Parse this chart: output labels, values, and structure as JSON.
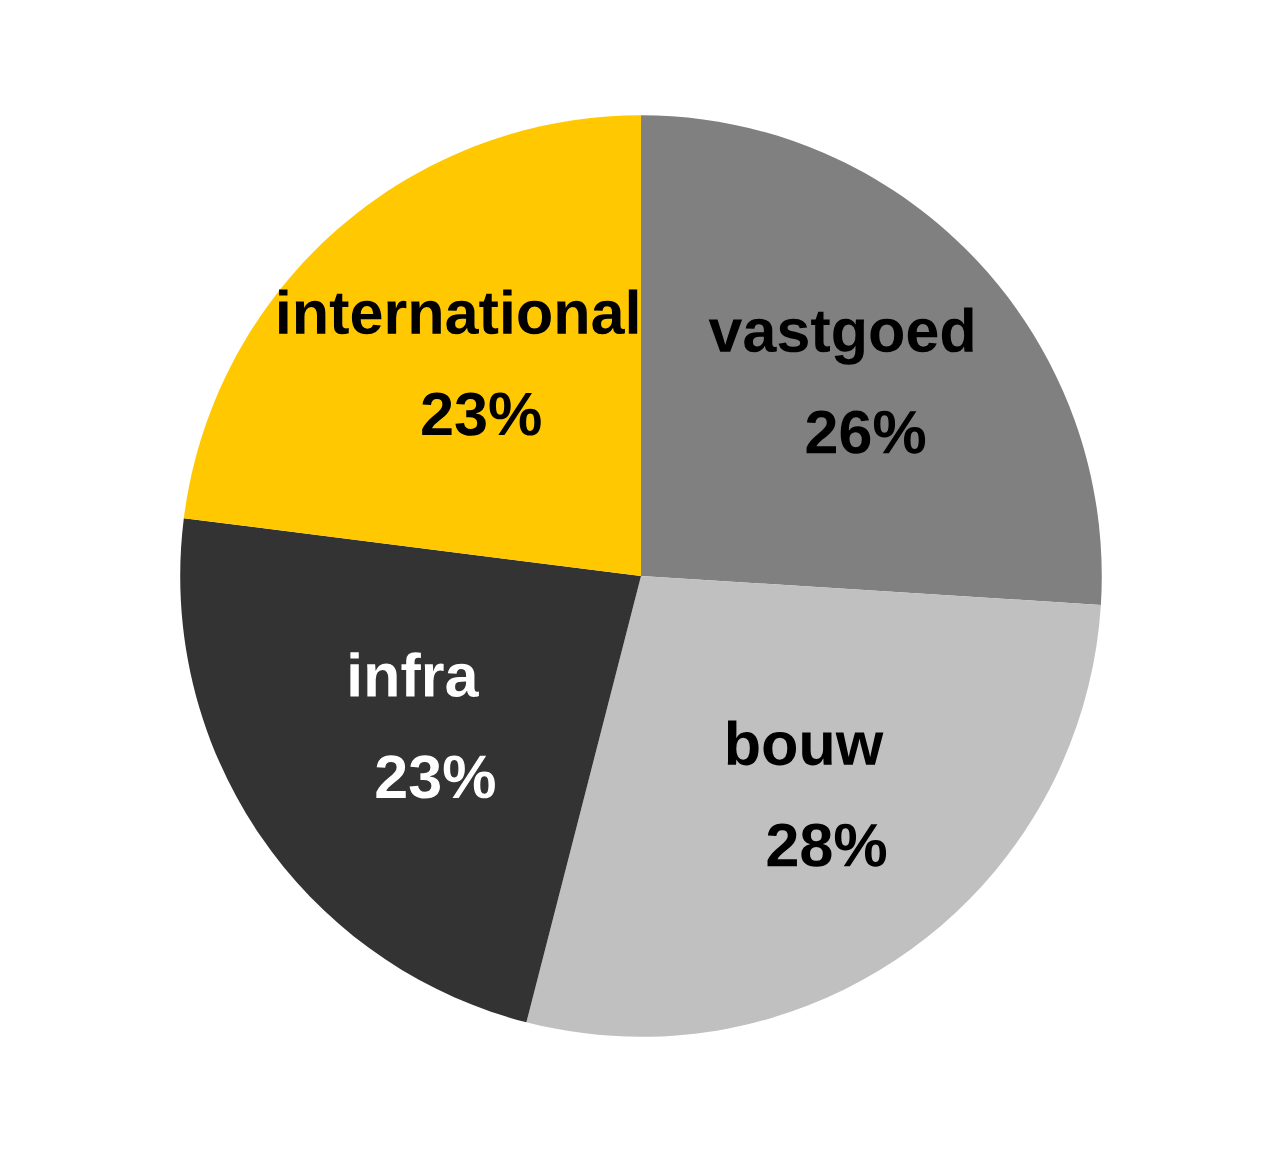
{
  "chart_data": {
    "type": "pie",
    "categories": [
      "vastgoed",
      "bouw",
      "infra",
      "international"
    ],
    "values": [
      26,
      28,
      23,
      23
    ],
    "colors": [
      "#808080",
      "#c0c0c0",
      "#333333",
      "#ffc800"
    ],
    "value_labels": [
      "26%",
      "28%",
      "23%",
      "23%"
    ]
  }
}
